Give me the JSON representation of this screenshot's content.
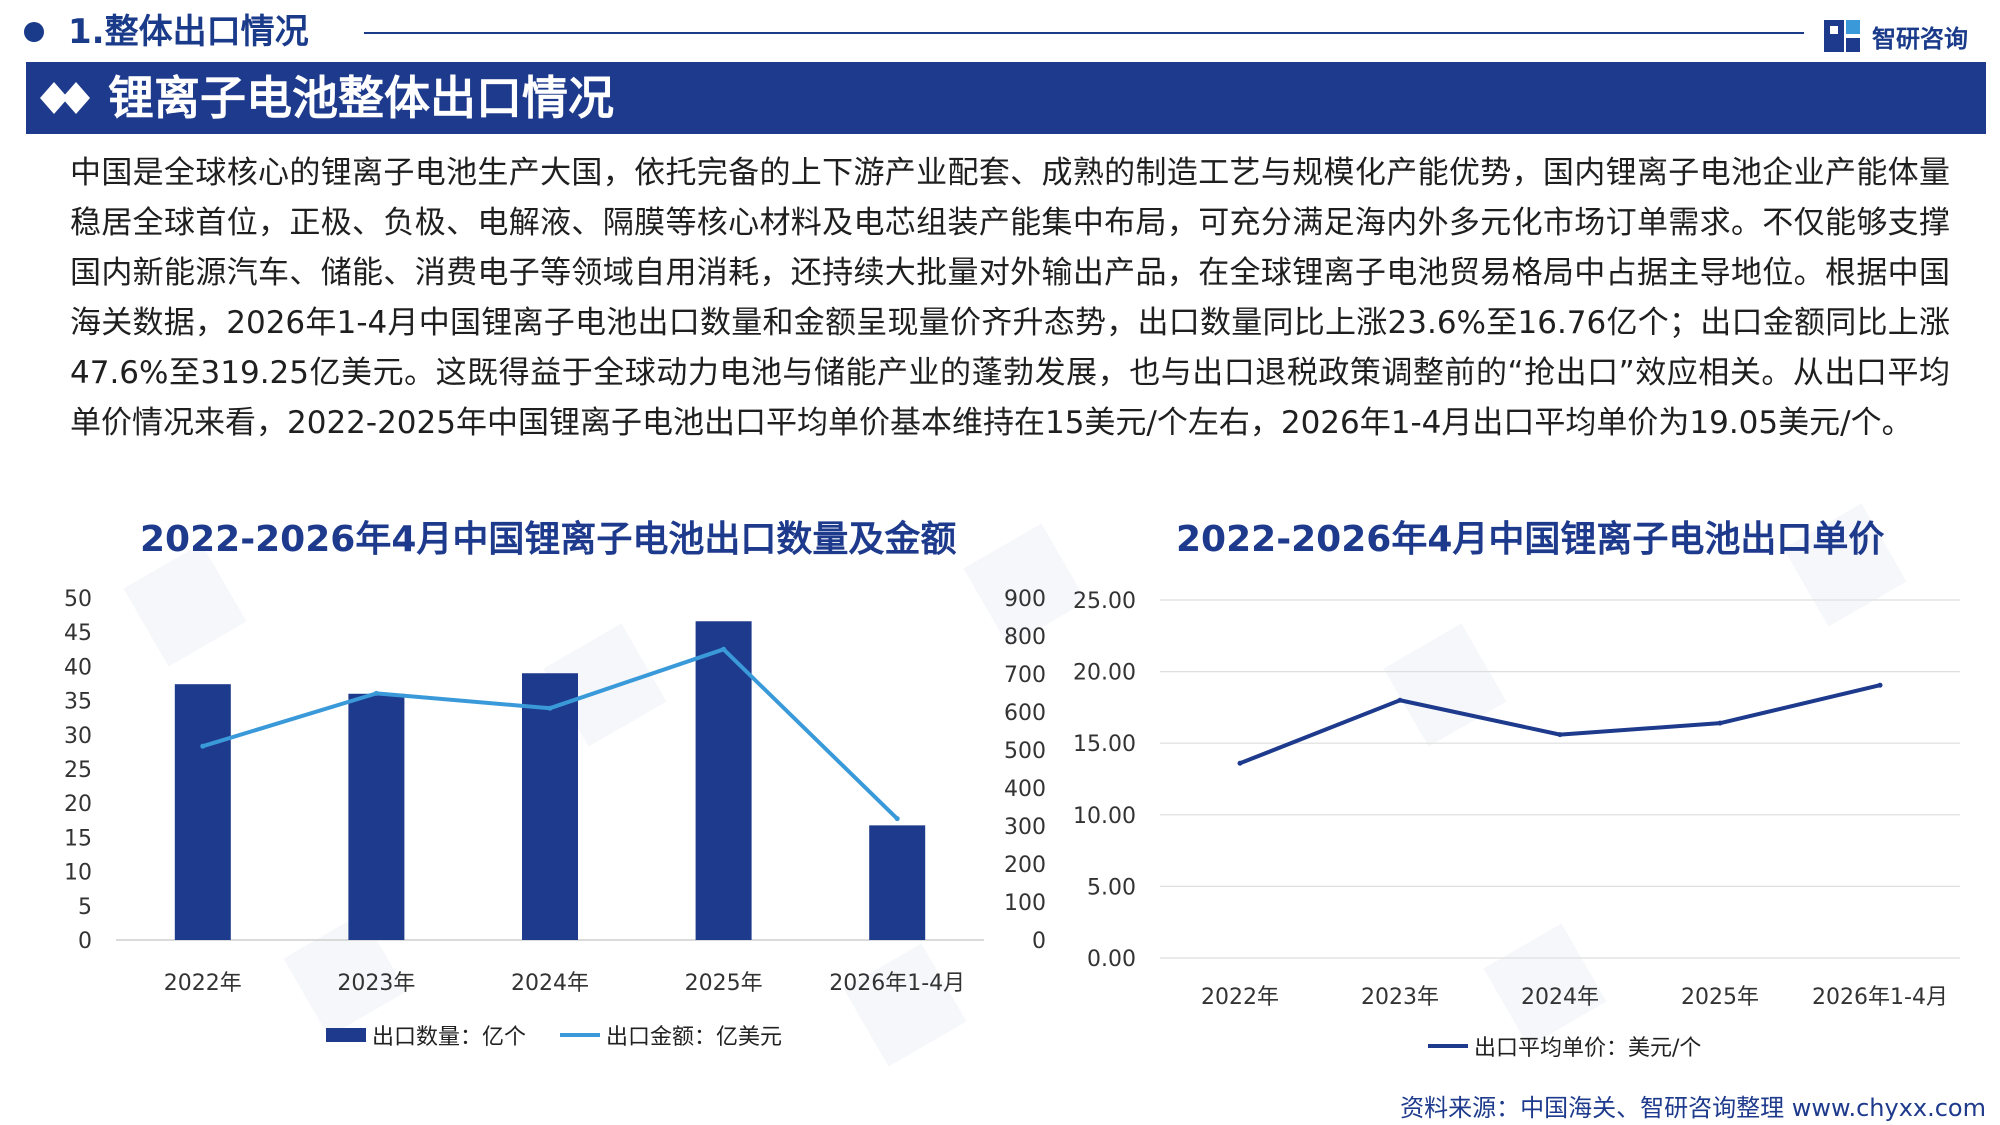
{
  "header": {
    "section_title": "1.整体出口情况",
    "brand_name": "智研咨询"
  },
  "banner": {
    "title": "锂离子电池整体出口情况"
  },
  "paragraph": "中国是全球核心的锂离子电池生产大国，依托完备的上下游产业配套、成熟的制造工艺与规模化产能优势，国内锂离子电池企业产能体量稳居全球首位，正极、负极、电解液、隔膜等核心材料及电芯组装产能集中布局，可充分满足海内外多元化市场订单需求。不仅能够支撑国内新能源汽车、储能、消费电子等领域自用消耗，还持续大批量对外输出产品，在全球锂离子电池贸易格局中占据主导地位。根据中国海关数据，2026年1-4月中国锂离子电池出口数量和金额呈现量价齐升态势，出口数量同比上涨23.6%至16.76亿个；出口金额同比上涨47.6%至319.25亿美元。这既得益于全球动力电池与储能产业的蓬勃发展，也与出口退税政策调整前的“抢出口”效应相关。从出口平均单价情况来看，2022-2025年中国锂离子电池出口平均单价基本维持在15美元/个左右，2026年1-4月出口平均单价为19.05美元/个。",
  "chart_data": [
    {
      "type": "bar",
      "title": "2022-2026年4月中国锂离子电池出口数量及金额",
      "categories": [
        "2022年",
        "2023年",
        "2024年",
        "2025年",
        "2026年1-4月"
      ],
      "series": [
        {
          "name": "出口数量：亿个",
          "type": "bar",
          "axis": "left",
          "color": "#1e3a8c",
          "values": [
            37.4,
            36.0,
            39.0,
            46.6,
            16.76
          ]
        },
        {
          "name": "出口金额：亿美元",
          "type": "line",
          "axis": "right",
          "color": "#3a9ad9",
          "values": [
            510,
            649,
            610,
            765,
            319.25
          ]
        }
      ],
      "ylim": [
        0,
        50
      ],
      "yticks": [
        "0",
        "5",
        "10",
        "15",
        "20",
        "25",
        "30",
        "35",
        "40",
        "45",
        "50"
      ],
      "y2lim": [
        0,
        900
      ],
      "y2ticks": [
        "0",
        "100",
        "200",
        "300",
        "400",
        "500",
        "600",
        "700",
        "800",
        "900"
      ],
      "legend": "bottom",
      "grid": false
    },
    {
      "type": "line",
      "title": "2022-2026年4月中国锂离子电池出口单价",
      "categories": [
        "2022年",
        "2023年",
        "2024年",
        "2025年",
        "2026年1-4月"
      ],
      "series": [
        {
          "name": "出口平均单价：美元/个",
          "color": "#1e3a8c",
          "values": [
            13.6,
            18.0,
            15.6,
            16.4,
            19.05
          ]
        }
      ],
      "ylim": [
        0,
        25
      ],
      "yticks": [
        "0.00",
        "5.00",
        "10.00",
        "15.00",
        "20.00",
        "25.00"
      ],
      "legend": "bottom",
      "grid": true
    }
  ],
  "source": "资料来源：中国海关、智研咨询整理  www.chyxx.com"
}
